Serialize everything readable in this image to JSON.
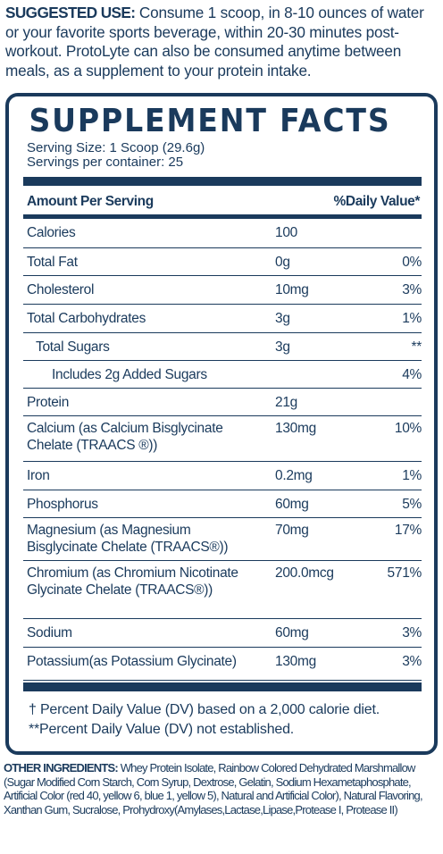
{
  "usage": {
    "label": "SUGGESTED USE:",
    "text": " Consume 1 scoop, in 8-10 ounces of water or your favorite sports beverage, within 20-30 minutes post-workout. ProtoLyte can also be consumed anytime between meals, as a supplement to your protein intake."
  },
  "facts": {
    "title": "SUPPLEMENT FACTS",
    "serving_size": "Serving Size: 1 Scoop (29.6g)",
    "servings": "Servings per container: 25",
    "header_left": "Amount Per Serving",
    "header_right": "%Daily Value*",
    "rows": [
      {
        "name": "Calories",
        "amount": "100",
        "dv": ""
      },
      {
        "name": "Total Fat",
        "amount": "0g",
        "dv": "0%"
      },
      {
        "name": "Cholesterol",
        "amount": "10mg",
        "dv": "3%"
      },
      {
        "name": "Total Carbohydrates",
        "amount": "3g",
        "dv": "1%"
      },
      {
        "name": "Total Sugars",
        "amount": "3g",
        "dv": "**"
      },
      {
        "name": "Includes 2g Added Sugars",
        "amount": "",
        "dv": "4%"
      },
      {
        "name": "Protein",
        "amount": "21g",
        "dv": ""
      },
      {
        "name": "Calcium (as Calcium Bisglycinate",
        "name2": "Chelate (TRAACS ®))",
        "amount": "130mg",
        "dv": "10%"
      },
      {
        "name": "Iron",
        "amount": "0.2mg",
        "dv": "1%"
      },
      {
        "name": "Phosphorus",
        "amount": "60mg",
        "dv": "5%"
      },
      {
        "name": "Magnesium (as Magnesium",
        "name2": "Bisglycinate Chelate (TRAACS®))",
        "amount": "70mg",
        "dv": "17%"
      },
      {
        "name": "Chromium (as Chromium Nicotinate",
        "name2": "Glycinate Chelate (TRAACS®))",
        "amount": "200.0mcg",
        "dv": "571%"
      },
      {
        "name": "Sodium",
        "amount": "60mg",
        "dv": "3%"
      },
      {
        "name": "Potassium(as Potassium Glycinate)",
        "amount": "130mg",
        "dv": "3%"
      }
    ],
    "foot1": "† Percent Daily Value (DV) based on a 2,000 calorie diet.",
    "foot2": "**Percent Daily Value (DV) not established."
  },
  "other": {
    "label": "OTHER INGREDIENTS:",
    "text": " Whey Protein Isolate, Rainbow Colored Dehydrated Marshmallow (Sugar Modified Corn Starch, Corn Syrup, Dextrose, Gelatin, Sodium Hexametaphosphate, Artificial Color (red 40, yellow 6, blue 1, yellow 5), Natural and Artificial Color), Natural Flavoring, Xanthan Gum, Sucralose, Prohydroxy(Amylases,Lactase,Lipase,Protease I, Protease II)"
  }
}
